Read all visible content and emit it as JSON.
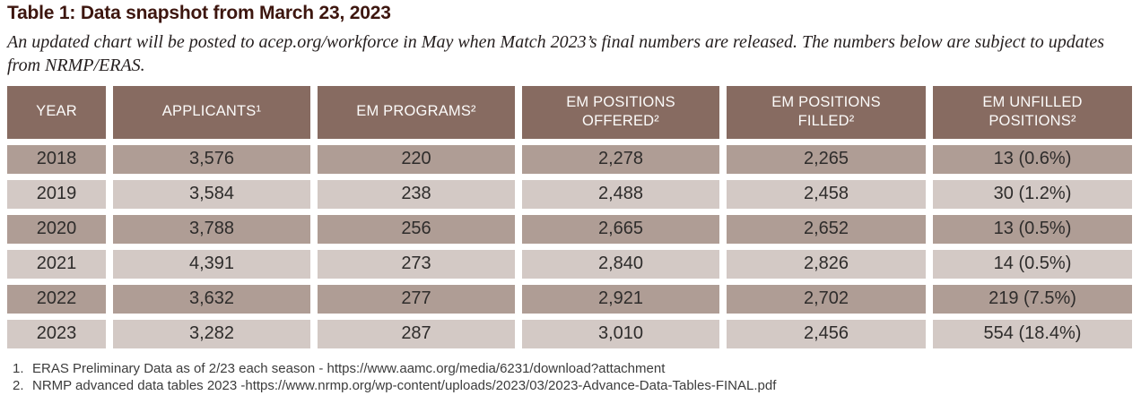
{
  "title": "Table 1: Data snapshot from March 23, 2023",
  "subtitle": "An updated chart will be posted to acep.org/workforce in May when Match 2023’s final numbers are released. The numbers below are subject to updates from NRMP/ERAS.",
  "colors": {
    "header_bg": "#876B61",
    "row_dark": "#AF9D95",
    "row_light": "#D3C9C5",
    "title_text": "#3D160F"
  },
  "table": {
    "columns": [
      "YEAR",
      "APPLICANTS¹",
      "EM PROGRAMS²",
      "EM POSITIONS\nOFFERED²",
      "EM POSITIONS\nFILLED²",
      "EM UNFILLED\nPOSITIONS²"
    ],
    "rows": [
      [
        "2018",
        "3,576",
        "220",
        "2,278",
        "2,265",
        "13 (0.6%)"
      ],
      [
        "2019",
        "3,584",
        "238",
        "2,488",
        "2,458",
        "30 (1.2%)"
      ],
      [
        "2020",
        "3,788",
        "256",
        "2,665",
        "2,652",
        "13 (0.5%)"
      ],
      [
        "2021",
        "4,391",
        "273",
        "2,840",
        "2,826",
        "14 (0.5%)"
      ],
      [
        "2022",
        "3,632",
        "277",
        "2,921",
        "2,702",
        "219 (7.5%)"
      ],
      [
        "2023",
        "3,282",
        "287",
        "3,010",
        "2,456",
        "554 (18.4%)"
      ]
    ]
  },
  "footnotes": [
    {
      "num": "1.",
      "text": "ERAS Preliminary Data as of 2/23 each season - https://www.aamc.org/media/6231/download?attachment"
    },
    {
      "num": "2.",
      "text": "NRMP advanced data tables 2023 -https://www.nrmp.org/wp-content/uploads/2023/03/2023-Advance-Data-Tables-FINAL.pdf"
    }
  ],
  "chart_data": {
    "type": "table",
    "title": "Table 1: Data snapshot from March 23, 2023",
    "categories": [
      2018,
      2019,
      2020,
      2021,
      2022,
      2023
    ],
    "series": [
      {
        "name": "Applicants",
        "values": [
          3576,
          3584,
          3788,
          4391,
          3632,
          3282
        ]
      },
      {
        "name": "EM Programs",
        "values": [
          220,
          238,
          256,
          273,
          277,
          287
        ]
      },
      {
        "name": "EM Positions Offered",
        "values": [
          2278,
          2488,
          2665,
          2840,
          2921,
          3010
        ]
      },
      {
        "name": "EM Positions Filled",
        "values": [
          2265,
          2458,
          2652,
          2826,
          2702,
          2456
        ]
      },
      {
        "name": "EM Unfilled Positions",
        "values": [
          13,
          30,
          13,
          14,
          219,
          554
        ]
      },
      {
        "name": "EM Unfilled Positions %",
        "values": [
          0.6,
          1.2,
          0.5,
          0.5,
          7.5,
          18.4
        ]
      }
    ]
  }
}
